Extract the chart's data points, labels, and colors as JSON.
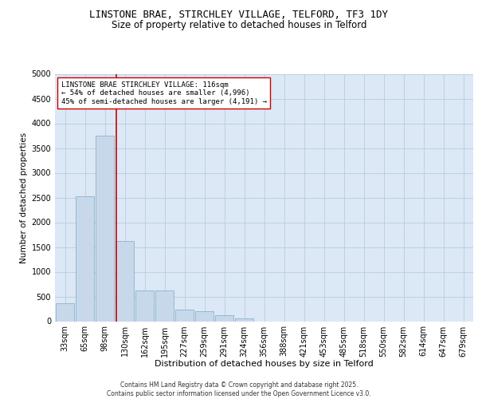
{
  "title1": "LINSTONE BRAE, STIRCHLEY VILLAGE, TELFORD, TF3 1DY",
  "title2": "Size of property relative to detached houses in Telford",
  "xlabel": "Distribution of detached houses by size in Telford",
  "ylabel": "Number of detached properties",
  "categories": [
    "33sqm",
    "65sqm",
    "98sqm",
    "130sqm",
    "162sqm",
    "195sqm",
    "227sqm",
    "259sqm",
    "291sqm",
    "324sqm",
    "356sqm",
    "388sqm",
    "421sqm",
    "453sqm",
    "485sqm",
    "518sqm",
    "550sqm",
    "582sqm",
    "614sqm",
    "647sqm",
    "679sqm"
  ],
  "values": [
    370,
    2530,
    3750,
    1620,
    620,
    620,
    240,
    200,
    120,
    60,
    0,
    0,
    0,
    0,
    0,
    0,
    0,
    0,
    0,
    0,
    0
  ],
  "bar_color": "#c8d8eb",
  "bar_edge_color": "#7aaac8",
  "vline_color": "#cc0000",
  "annotation_text": "LINSTONE BRAE STIRCHLEY VILLAGE: 116sqm\n← 54% of detached houses are smaller (4,996)\n45% of semi-detached houses are larger (4,191) →",
  "annotation_box_color": "white",
  "annotation_box_edge": "#cc0000",
  "ylim": [
    0,
    5000
  ],
  "yticks": [
    0,
    500,
    1000,
    1500,
    2000,
    2500,
    3000,
    3500,
    4000,
    4500,
    5000
  ],
  "grid_color": "#b8cce0",
  "background_color": "#dce8f5",
  "footer": "Contains HM Land Registry data © Crown copyright and database right 2025.\nContains public sector information licensed under the Open Government Licence v3.0.",
  "title1_fontsize": 9,
  "title2_fontsize": 8.5,
  "xlabel_fontsize": 8,
  "ylabel_fontsize": 7.5,
  "tick_fontsize": 7,
  "annotation_fontsize": 6.5,
  "footer_fontsize": 5.5
}
